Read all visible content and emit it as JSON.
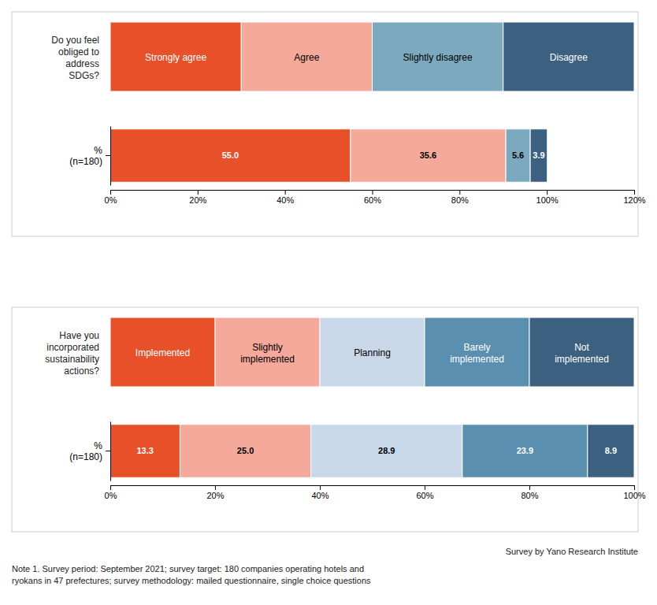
{
  "chart_data": [
    {
      "type": "bar",
      "orientation": "horizontal",
      "stacked": true,
      "data_labels": true,
      "legend": "top",
      "grid": false,
      "title": "Do you feel\nobliged to\naddress\nSDGs?",
      "categories": [
        "%\n(n=180)"
      ],
      "series": [
        {
          "name": "Strongly agree",
          "color": "#E8502A",
          "values": [
            55.0
          ],
          "value_labels": [
            "55.0"
          ]
        },
        {
          "name": "Agree",
          "color": "#F4A99A",
          "values": [
            35.6
          ]
        },
        {
          "name": "Slightly disagree",
          "color": "#7BAABF",
          "values": [
            5.6
          ]
        },
        {
          "name": "Disagree",
          "color": "#3C6080",
          "values": [
            3.9
          ]
        }
      ],
      "xlim": [
        0,
        120
      ],
      "xticks": [
        {
          "value": 0,
          "label": "0%"
        },
        {
          "value": 20,
          "label": "20%"
        },
        {
          "value": 40,
          "label": "40%"
        },
        {
          "value": 60,
          "label": "60%"
        },
        {
          "value": 80,
          "label": "80%"
        },
        {
          "value": 100,
          "label": "100%"
        },
        {
          "value": 120,
          "label": "120%"
        }
      ]
    },
    {
      "type": "bar",
      "orientation": "horizontal",
      "stacked": true,
      "data_labels": true,
      "legend": "top",
      "grid": false,
      "title": "Have you\nincorporated\nsustainability\nactions?",
      "categories": [
        "%\n(n=180)"
      ],
      "series": [
        {
          "name": "Implemented",
          "color": "#E8502A",
          "values": [
            13.3
          ]
        },
        {
          "name": "Slightly\nimplemented",
          "color": "#F4A99A",
          "values": [
            25.0
          ],
          "value_labels": [
            "25.0"
          ]
        },
        {
          "name": "Planning",
          "color": "#C8D8E8",
          "values": [
            28.9
          ]
        },
        {
          "name": "Barely\nimplemented",
          "color": "#5A8FB0",
          "values": [
            23.9
          ]
        },
        {
          "name": "Not\nimplemented",
          "color": "#3C6080",
          "values": [
            8.9
          ]
        }
      ],
      "xlim": [
        0,
        100
      ],
      "xticks": [
        {
          "value": 0,
          "label": "0%"
        },
        {
          "value": 20,
          "label": "20%"
        },
        {
          "value": 40,
          "label": "40%"
        },
        {
          "value": 60,
          "label": "60%"
        },
        {
          "value": 80,
          "label": "80%"
        },
        {
          "value": 100,
          "label": "100%"
        }
      ],
      "annotations": [
        "Survey by Yano Research Institute",
        "Note 1. Survey period: September 2021; survey target: 180 companies operating hotels and\nryokans in 47 prefectures; survey methodology: mailed questionnaire, single choice questions"
      ]
    }
  ]
}
